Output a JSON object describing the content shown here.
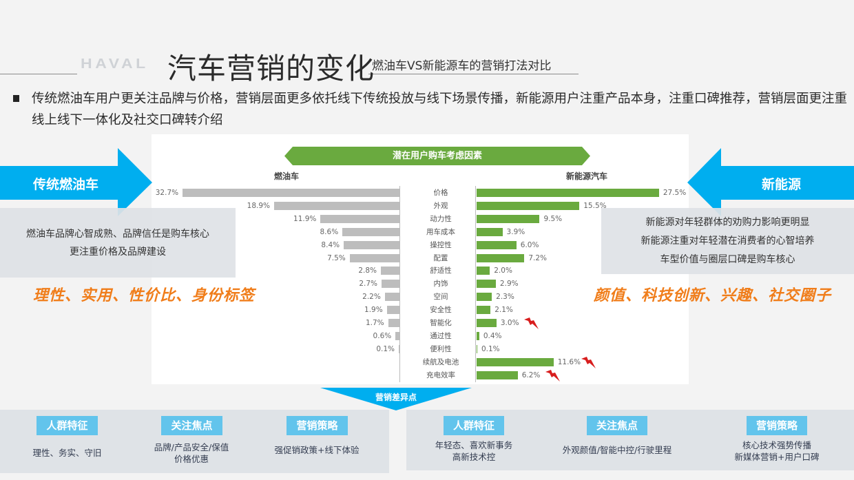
{
  "header": {
    "logo": "HAVAL",
    "title": "汽车营销的变化",
    "subtitle": "燃油车VS新能源车的营销打法对比"
  },
  "bullet": {
    "text": "传统燃油车用户更关注品牌与价格，营销层面更多依托线下传统投放与线下场景传播，新能源用户注重产品本身，注重口碑推荐，营销层面更注重线上线下一体化及社交口碑转介绍"
  },
  "left": {
    "arrow_label": "传统燃油车",
    "info_lines": [
      "燃油车品牌心智成熟、品牌信任是购车核心",
      "更注重价格及品牌建设"
    ],
    "keywords": "理性、实用、性价比、身份标签"
  },
  "right": {
    "arrow_label": "新能源",
    "info_lines": [
      "新能源对年轻群体的劝购力影响更明显",
      "新能源注重对年轻潜在消费者的心智培养",
      "车型价值与圈层口碑是购车核心"
    ],
    "keywords": "颜值、科技创新、兴趣、社交圈子"
  },
  "colors": {
    "accent_blue": "#00aeef",
    "tag_blue": "#62c4ec",
    "ev_green": "#6aaa3f",
    "ice_grey": "#bdbdbd",
    "keyword_orange": "#f07d1a"
  },
  "chart_data": {
    "type": "bar",
    "orientation": "horizontal-butterfly",
    "title": "潜在用户购车考虑因素",
    "categories": [
      "价格",
      "外观",
      "动力性",
      "用车成本",
      "操控性",
      "配置",
      "舒适性",
      "内饰",
      "空间",
      "安全性",
      "智能化",
      "通过性",
      "便利性",
      "续航及电池",
      "充电效率"
    ],
    "series": [
      {
        "name": "燃油车",
        "color": "#bdbdbd",
        "side": "left",
        "values": [
          32.7,
          18.9,
          11.9,
          8.6,
          8.4,
          7.5,
          2.8,
          2.7,
          2.2,
          1.9,
          1.7,
          0.6,
          0.1,
          null,
          null
        ],
        "labels": [
          "32.7%",
          "18.9%",
          "11.9%",
          "8.6%",
          "8.4%",
          "7.5%",
          "2.8%",
          "2.7%",
          "2.2%",
          "1.9%",
          "1.7%",
          "0.6%",
          "0.1%",
          "",
          ""
        ]
      },
      {
        "name": "新能源汽车",
        "color": "#6aaa3f",
        "side": "right",
        "values": [
          27.5,
          15.5,
          9.5,
          3.9,
          6.0,
          7.2,
          2.0,
          2.9,
          2.3,
          2.1,
          3.0,
          0.4,
          0.1,
          11.6,
          6.2
        ],
        "labels": [
          "27.5%",
          "15.5%",
          "9.5%",
          "3.9%",
          "6.0%",
          "7.2%",
          "2.0%",
          "2.9%",
          "2.3%",
          "2.1%",
          "3.0%",
          "0.4%",
          "0.1%",
          "11.6%",
          "6.2%"
        ]
      }
    ],
    "annotations": [
      {
        "category": "智能化",
        "marker": "red-lightning"
      },
      {
        "category": "续航及电池",
        "marker": "red-lightning"
      },
      {
        "category": "充电效率",
        "marker": "red-lightning"
      }
    ],
    "unit": "%",
    "grid": false,
    "legend": "column headers above each side"
  },
  "differences": {
    "banner": "营销差异点",
    "ice": [
      {
        "tag": "人群特征",
        "lines": [
          "理性、务实、守旧"
        ]
      },
      {
        "tag": "关注焦点",
        "lines": [
          "品牌/产品安全/保值",
          "价格优惠"
        ]
      },
      {
        "tag": "营销策略",
        "lines": [
          "强促销政策+线下体验"
        ]
      }
    ],
    "ev": [
      {
        "tag": "人群特征",
        "lines": [
          "年轻态、喜欢新事务",
          "高新技术控"
        ]
      },
      {
        "tag": "关注焦点",
        "lines": [
          "外观颜值/智能中控/行驶里程"
        ]
      },
      {
        "tag": "营销策略",
        "lines": [
          "核心技术强势传播",
          "新媒体营销+用户口碑"
        ]
      }
    ]
  }
}
